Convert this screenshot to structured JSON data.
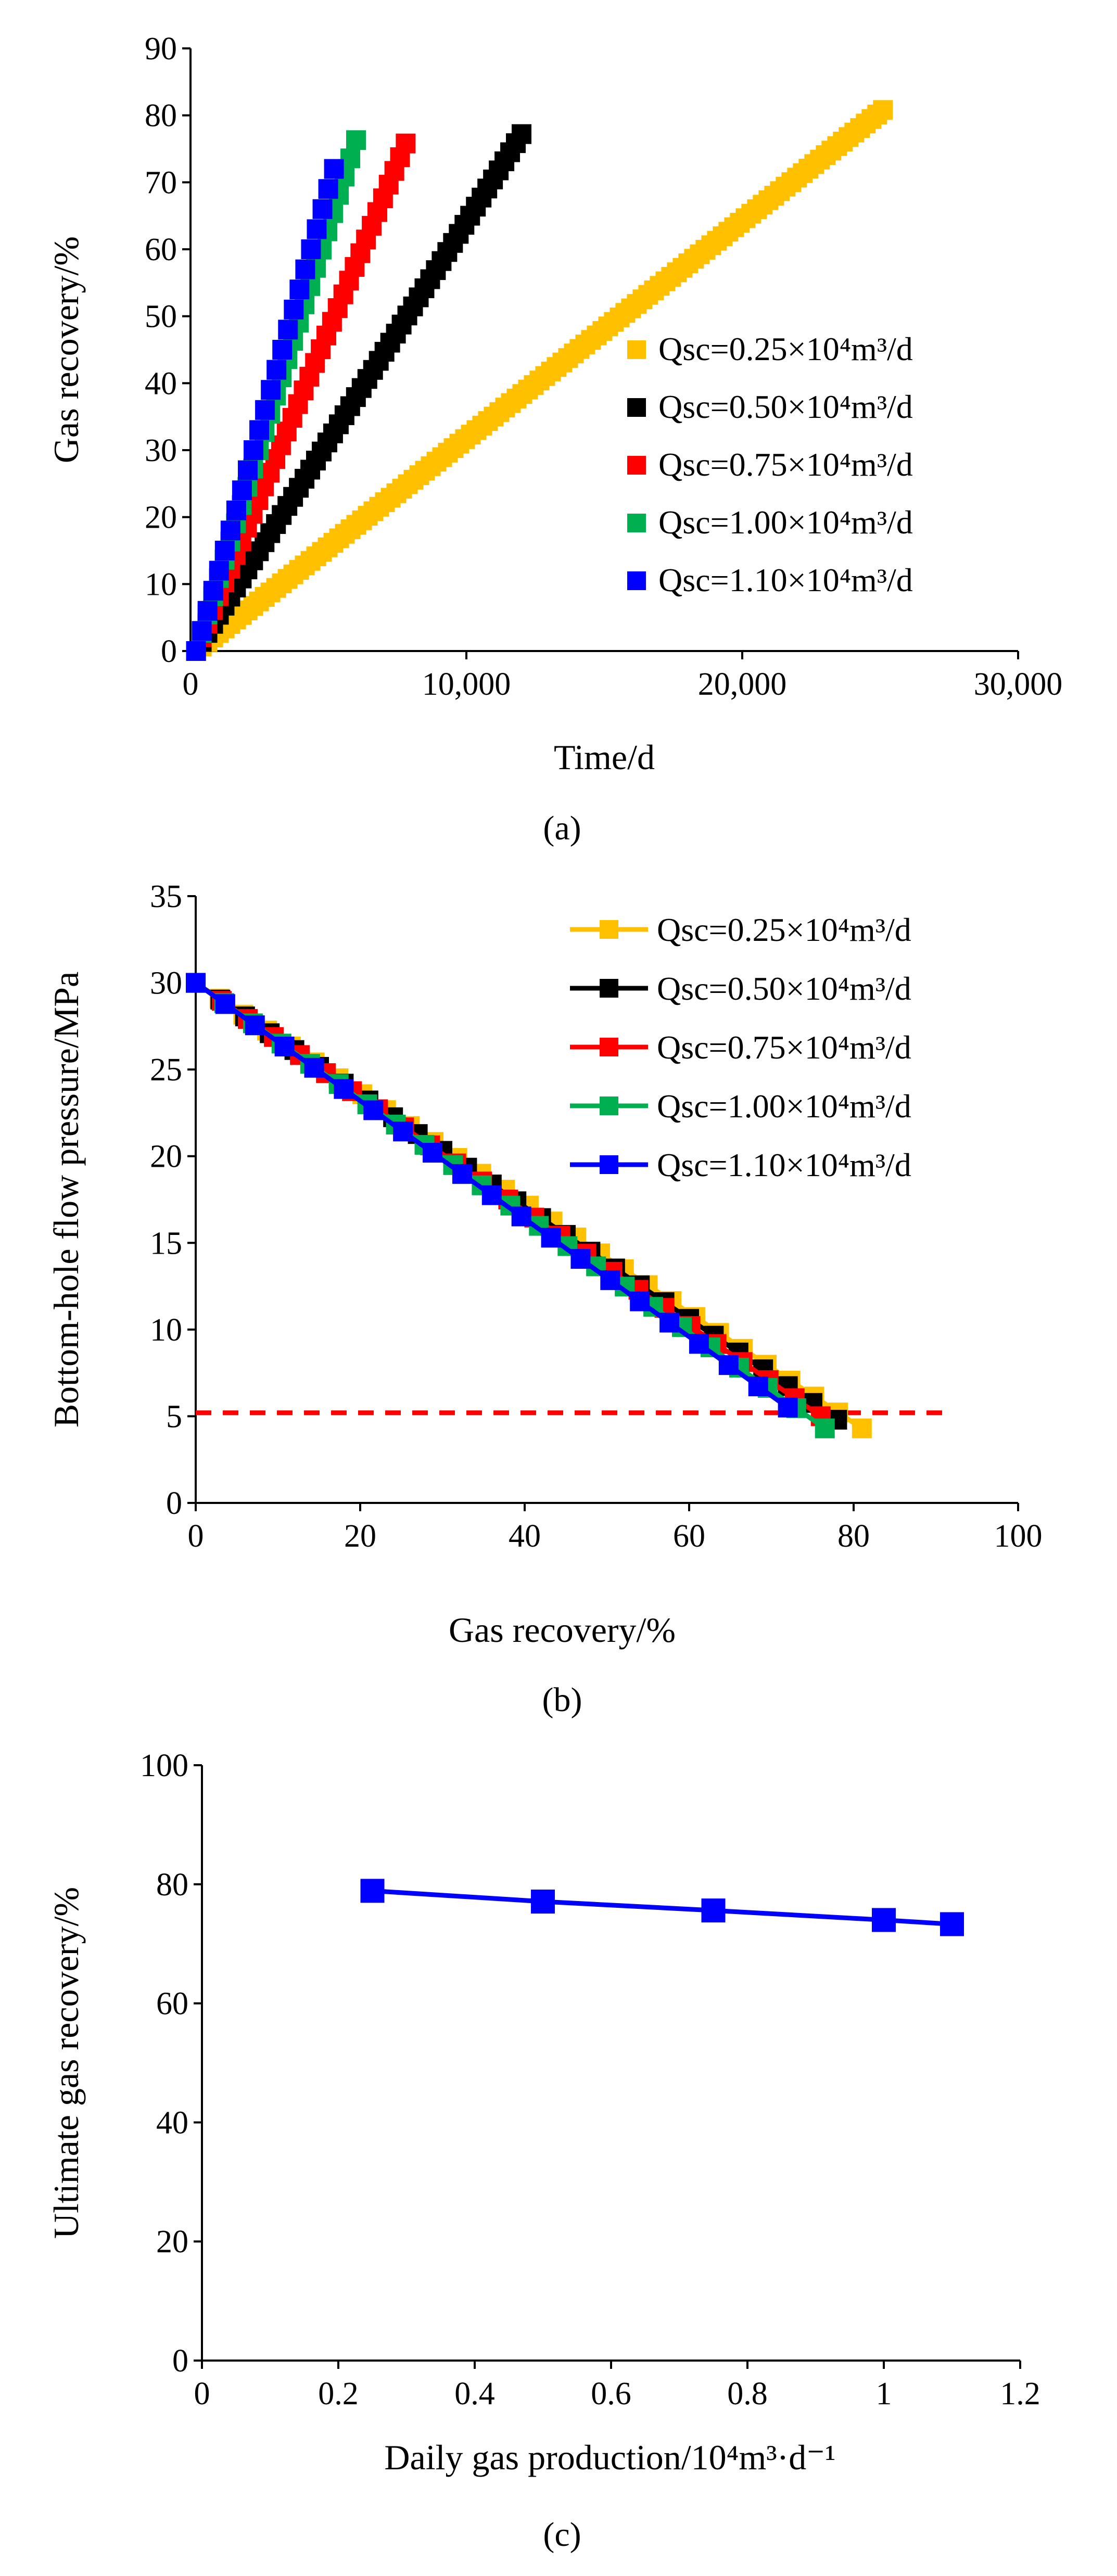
{
  "panels": [
    {
      "label": "(a)",
      "colors": [
        "#ffc000",
        "#000000",
        "#ff0000",
        "#00b050",
        "#0000ff"
      ],
      "chart_data": {
        "type": "scatter",
        "title": "",
        "xlabel": "Time/d",
        "ylabel": "Gas recovery/%",
        "xlim": [
          0,
          30000
        ],
        "ylim": [
          0,
          90
        ],
        "xticks": [
          0,
          10000,
          20000,
          30000
        ],
        "xtick_labels": [
          "0",
          "10,000",
          "20,000",
          "30,000"
        ],
        "yticks": [
          0,
          10,
          20,
          30,
          40,
          50,
          60,
          70,
          80,
          90
        ],
        "ytick_labels": [
          "0",
          "10",
          "20",
          "30",
          "40",
          "50",
          "60",
          "70",
          "80",
          "90"
        ],
        "legend_position": "center-right",
        "series": [
          {
            "name": "Qsc=0.25×10⁴m³/d",
            "x_end": 25100,
            "y_end": 80.8,
            "slope": 0.00322
          },
          {
            "name": "Qsc=0.50×10⁴m³/d",
            "x_end": 12000,
            "y_end": 77.2,
            "slope": 0.00643
          },
          {
            "name": "Qsc=0.75×10⁴m³/d",
            "x_end": 7800,
            "y_end": 75.8,
            "slope": 0.00972
          },
          {
            "name": "Qsc=1.00×10⁴m³/d",
            "x_end": 6000,
            "y_end": 76.3,
            "slope": 0.01272
          },
          {
            "name": "Qsc=1.10×10⁴m³/d",
            "x_end": 5200,
            "y_end": 72.0,
            "slope": 0.01385
          }
        ]
      }
    },
    {
      "label": "(b)",
      "colors": [
        "#ffc000",
        "#000000",
        "#ff0000",
        "#00b050",
        "#0000ff"
      ],
      "limit_color": "#ff0000",
      "chart_data": {
        "type": "line",
        "title": "",
        "xlabel": "Gas recovery/%",
        "ylabel": "Bottom-hole flow pressure/MPa",
        "xlim": [
          0,
          100
        ],
        "ylim": [
          0,
          35
        ],
        "xticks": [
          0,
          20,
          40,
          60,
          80,
          100
        ],
        "xtick_labels": [
          "0",
          "20",
          "40",
          "60",
          "80",
          "100"
        ],
        "yticks": [
          0,
          5,
          10,
          15,
          20,
          25,
          30,
          35
        ],
        "ytick_labels": [
          "0",
          "5",
          "10",
          "15",
          "20",
          "25",
          "30",
          "35"
        ],
        "legend_position": "top-right",
        "series": [
          {
            "name": "Qsc=0.25×10⁴m³/d",
            "x_end": 81,
            "y_end": 4.3
          },
          {
            "name": "Qsc=0.50×10⁴m³/d",
            "x_end": 78,
            "y_end": 4.8
          },
          {
            "name": "Qsc=0.75×10⁴m³/d",
            "x_end": 76,
            "y_end": 5.0
          },
          {
            "name": "Qsc=1.00×10⁴m³/d",
            "x_end": 76.5,
            "y_end": 4.3
          },
          {
            "name": "Qsc=1.10×10⁴m³/d",
            "x_end": 72,
            "y_end": 5.5
          }
        ],
        "reference_line": {
          "y": 5.2,
          "x_range": [
            0,
            92
          ],
          "style": "dashed"
        }
      }
    },
    {
      "label": "(c)",
      "colors": [
        "#0000ff"
      ],
      "chart_data": {
        "type": "line",
        "title": "",
        "xlabel": "Daily gas production/10⁴m³·d⁻¹",
        "ylabel": "Ultimate gas recovery/%",
        "xlim": [
          0,
          1.2
        ],
        "ylim": [
          0,
          100
        ],
        "xticks": [
          0,
          0.2,
          0.4,
          0.6,
          0.8,
          1,
          1.2
        ],
        "xtick_labels": [
          "0",
          "0.2",
          "0.4",
          "0.6",
          "0.8",
          "1",
          "1.2"
        ],
        "yticks": [
          0,
          20,
          40,
          60,
          80,
          100
        ],
        "ytick_labels": [
          "0",
          "20",
          "40",
          "60",
          "80",
          "100"
        ],
        "series": [
          {
            "name": "",
            "x": [
              0.25,
              0.5,
              0.75,
              1.0,
              1.1
            ],
            "y": [
              78.9,
              77.1,
              75.6,
              74.0,
              73.3
            ]
          }
        ]
      }
    }
  ]
}
